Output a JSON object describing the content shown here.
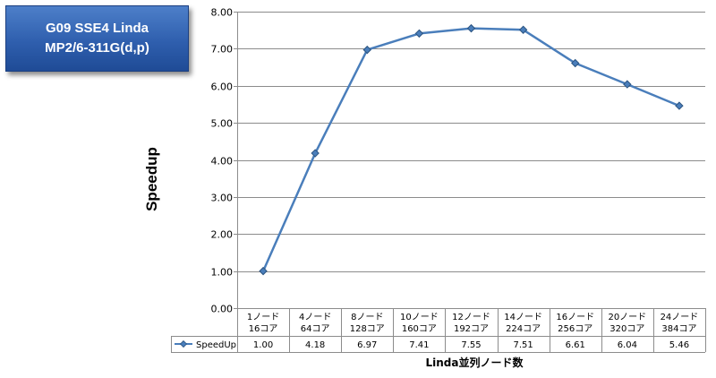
{
  "title_box": {
    "line1": "G09 SSE4 Linda",
    "line2": "MP2/6-311G(d,p)"
  },
  "chart_data": {
    "type": "line",
    "title": "G09 SSE4 Linda MP2/6-311G(d,p)",
    "ylabel": "Speedup",
    "xlabel": "Linda並列ノード数",
    "ylim": [
      0,
      8
    ],
    "yticks": [
      "0.00",
      "1.00",
      "2.00",
      "3.00",
      "4.00",
      "5.00",
      "6.00",
      "7.00",
      "8.00"
    ],
    "grid": true,
    "legend": "data-table",
    "categories": [
      [
        "1ノード",
        "16コア"
      ],
      [
        "4ノード",
        "64コア"
      ],
      [
        "8ノード",
        "128コア"
      ],
      [
        "10ノード",
        "160コア"
      ],
      [
        "12ノード",
        "192コア"
      ],
      [
        "14ノード",
        "224コア"
      ],
      [
        "16ノード",
        "256コア"
      ],
      [
        "20ノード",
        "320コア"
      ],
      [
        "24ノード",
        "384コア"
      ]
    ],
    "series": [
      {
        "name": "SpeedUp",
        "color": "#4a7ebb",
        "values": [
          1.0,
          4.18,
          6.97,
          7.41,
          7.55,
          7.51,
          6.61,
          6.04,
          5.46
        ],
        "labels": [
          "1.00",
          "4.18",
          "6.97",
          "7.41",
          "7.55",
          "7.51",
          "6.61",
          "6.04",
          "5.46"
        ]
      }
    ]
  }
}
